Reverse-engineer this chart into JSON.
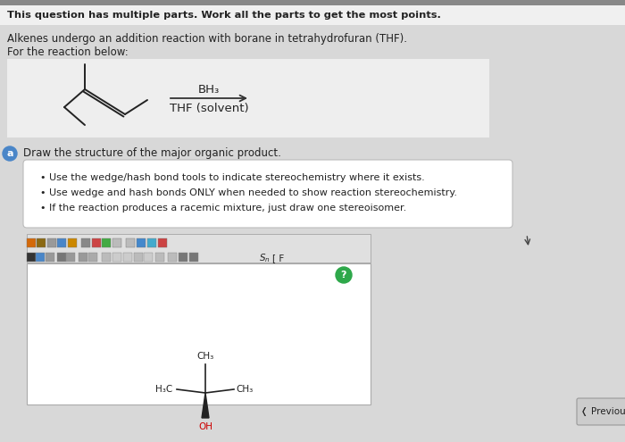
{
  "bg_color": "#d8d8d8",
  "header_text": "This question has multiple parts. Work all the parts to get the most points.",
  "body_text1": "Alkenes undergo an addition reaction with borane in tetrahydrofuran (THF).",
  "body_text2": "For the reaction below:",
  "reagent_above": "BH₃",
  "reagent_below": "THF (solvent)",
  "part_a_label": "a",
  "part_a_text": "Draw the structure of the major organic product.",
  "bullet1": "Use the wedge/hash bond tools to indicate stereochemistry where it exists.",
  "bullet2": "Use wedge and hash bonds ONLY when needed to show reaction stereochemistry.",
  "bullet3": "If the reaction produces a racemic mixture, just draw one stereoisomer.",
  "prev_text": "Previou",
  "toolbar_bg": "#e0e0e0",
  "white_box_bg": "#ffffff",
  "header_bg": "#f0f0f0",
  "question_box_bg": "#f8f8f8",
  "label_circle_color": "#4a86c8",
  "oh_color": "#cc0000",
  "bond_color": "#222222",
  "text_color": "#222222",
  "help_circle_color": "#2ea84a",
  "rxn_box_color": "#eeeeee",
  "arrow_color": "#333333",
  "top_bar_color": "#888888"
}
